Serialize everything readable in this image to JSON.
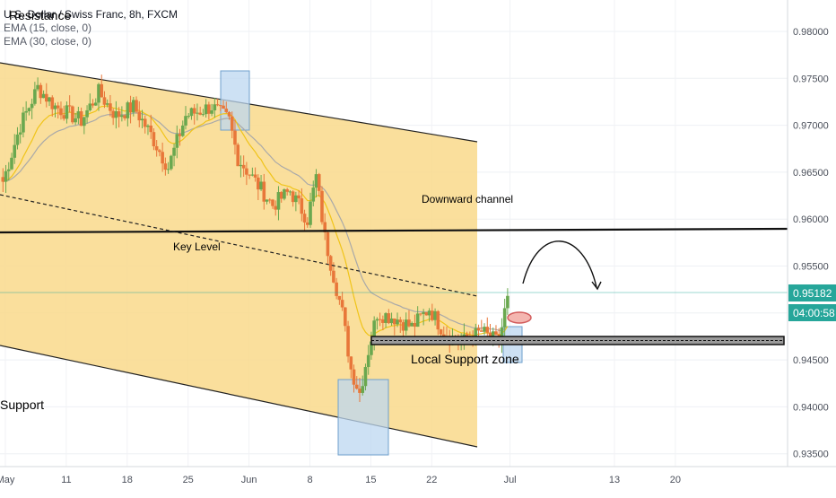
{
  "legend": {
    "symbol_title": "U.S. Dollar / Swiss Franc, 8h, FXCM",
    "ema15": "EMA (15, close, 0)",
    "ema30": "EMA (30, close, 0)"
  },
  "annotations": {
    "resistance": "Resistance",
    "support": "Support",
    "key_level": "Key Level",
    "downward_channel": "Downward channel",
    "local_support_zone": "Local Support zone"
  },
  "price_axis": {
    "ticks": [
      "0.98000",
      "0.97500",
      "0.97000",
      "0.96500",
      "0.96000",
      "0.95500",
      "0.95000",
      "0.94500",
      "0.94000",
      "0.93500"
    ],
    "current_price": "0.95182",
    "countdown": "04:00:58"
  },
  "time_axis": {
    "ticks": [
      "May",
      "11",
      "18",
      "25",
      "Jun",
      "8",
      "15",
      "22",
      "Jul",
      "13",
      "20"
    ]
  },
  "colors": {
    "bull": "#6aa84f",
    "bear": "#e8773a",
    "channel_fill": "#f9d98b",
    "box_fill": "#bcd7f0",
    "ema15": "#f0c419",
    "ema30": "#a9a9a9",
    "price_tag": "#26a69a"
  },
  "chart_data": {
    "type": "candlestick",
    "symbol": "U.S. Dollar / Swiss Franc",
    "timeframe": "8h",
    "source": "FXCM",
    "y_range": [
      0.9325,
      0.9825
    ],
    "x_tick_labels": [
      "May",
      "11",
      "18",
      "25",
      "Jun",
      "8",
      "15",
      "22",
      "Jul",
      "13",
      "20"
    ],
    "current_price": 0.95182,
    "key_level": 0.959,
    "local_support_zone": [
      0.9466,
      0.9472
    ],
    "close_path": [
      {
        "date": "2020-05-03",
        "close": 0.964
      },
      {
        "date": "2020-05-05",
        "close": 0.97
      },
      {
        "date": "2020-05-07",
        "close": 0.974
      },
      {
        "date": "2020-05-09",
        "close": 0.972
      },
      {
        "date": "2020-05-12",
        "close": 0.9705
      },
      {
        "date": "2020-05-14",
        "close": 0.9735
      },
      {
        "date": "2020-05-16",
        "close": 0.971
      },
      {
        "date": "2020-05-18",
        "close": 0.972
      },
      {
        "date": "2020-05-20",
        "close": 0.969
      },
      {
        "date": "2020-05-22",
        "close": 0.9655
      },
      {
        "date": "2020-05-24",
        "close": 0.971
      },
      {
        "date": "2020-05-27",
        "close": 0.972
      },
      {
        "date": "2020-05-29",
        "close": 0.9705
      },
      {
        "date": "2020-05-30",
        "close": 0.9665
      },
      {
        "date": "2020-06-01",
        "close": 0.964
      },
      {
        "date": "2020-06-03",
        "close": 0.9615
      },
      {
        "date": "2020-06-05",
        "close": 0.963
      },
      {
        "date": "2020-06-07",
        "close": 0.96
      },
      {
        "date": "2020-06-08",
        "close": 0.9645
      },
      {
        "date": "2020-06-09",
        "close": 0.958
      },
      {
        "date": "2020-06-11",
        "close": 0.95
      },
      {
        "date": "2020-06-12",
        "close": 0.944
      },
      {
        "date": "2020-06-13",
        "close": 0.9415
      },
      {
        "date": "2020-06-14",
        "close": 0.946
      },
      {
        "date": "2020-06-15",
        "close": 0.95
      },
      {
        "date": "2020-06-17",
        "close": 0.9495
      },
      {
        "date": "2020-06-19",
        "close": 0.9485
      },
      {
        "date": "2020-06-21",
        "close": 0.9505
      },
      {
        "date": "2020-06-23",
        "close": 0.9475
      },
      {
        "date": "2020-06-25",
        "close": 0.947
      },
      {
        "date": "2020-06-27",
        "close": 0.948
      },
      {
        "date": "2020-06-29",
        "close": 0.9468
      },
      {
        "date": "2020-06-30",
        "close": 0.95182
      }
    ]
  }
}
